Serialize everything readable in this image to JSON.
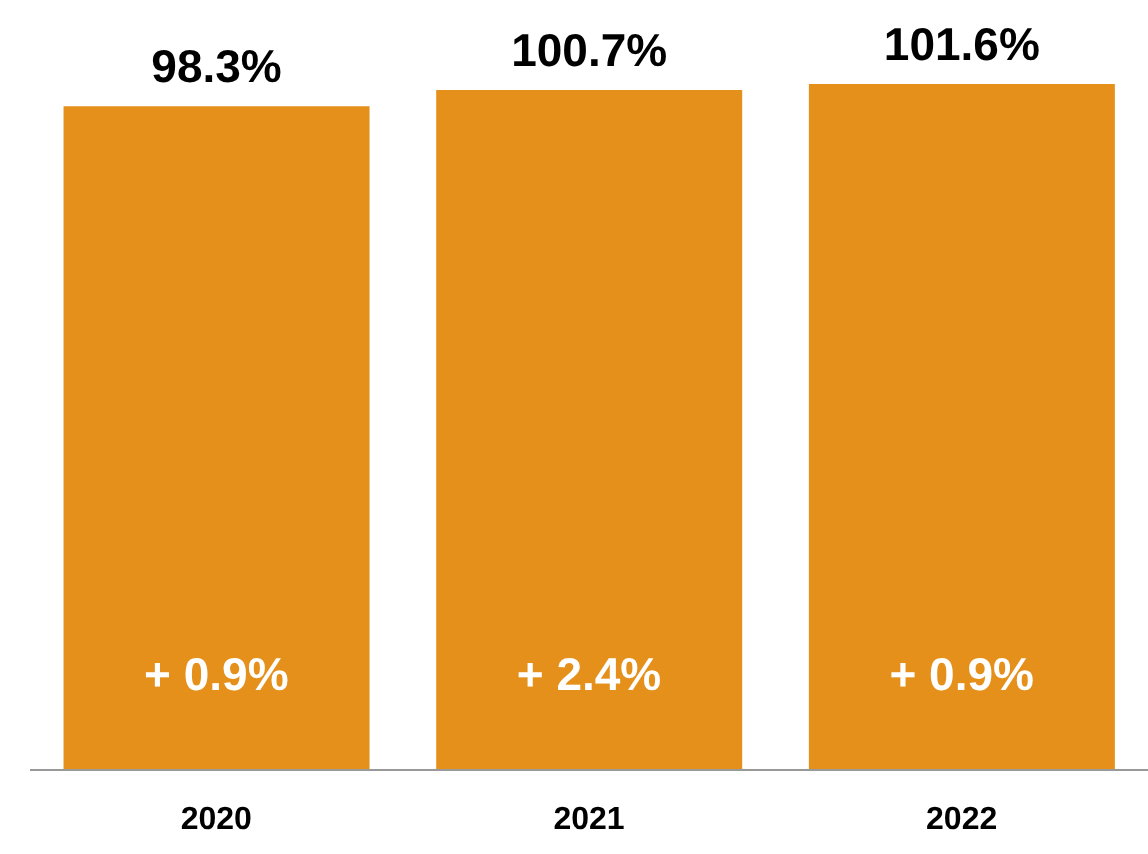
{
  "chart_data": {
    "type": "bar",
    "categories": [
      "2020",
      "2021",
      "2022"
    ],
    "values": [
      98.3,
      100.7,
      101.6
    ],
    "value_labels": [
      "98.3%",
      "100.7%",
      "101.6%"
    ],
    "color": "#e5901b",
    "annotations": [
      "+ 0.9%",
      "+ 2.4%",
      "+ 0.9%"
    ],
    "grid": false,
    "legend": false,
    "tick_labels": "x"
  }
}
